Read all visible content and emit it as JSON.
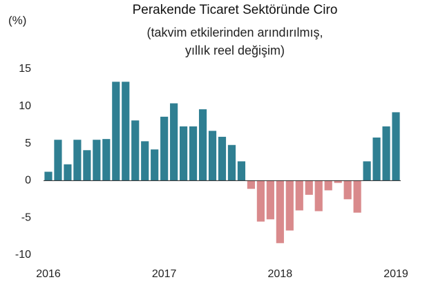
{
  "chart_data": {
    "type": "bar",
    "title": "Perakende Ticaret Sektöründe Ciro",
    "subtitle": "(takvim etkilerinden arındırılmış, yıllık reel değişim)",
    "y_label": "(%)",
    "categories": [
      "2016",
      null,
      null,
      null,
      null,
      null,
      null,
      null,
      null,
      null,
      null,
      null,
      "2017",
      null,
      null,
      null,
      null,
      null,
      null,
      null,
      null,
      null,
      null,
      null,
      "2018",
      null,
      null,
      null,
      null,
      null,
      null,
      null,
      null,
      null,
      null,
      null,
      "2019"
    ],
    "values": [
      1.2,
      5.5,
      2.2,
      5.5,
      4.1,
      5.5,
      5.6,
      13.3,
      13.3,
      8.1,
      5.3,
      4.2,
      8.6,
      10.4,
      7.3,
      7.3,
      9.6,
      6.7,
      5.9,
      4.8,
      2.6,
      -1.1,
      -5.5,
      -5.2,
      -8.4,
      -6.7,
      -4.0,
      -1.9,
      -4.1,
      -1.3,
      -0.3,
      -2.5,
      -4.3,
      2.6,
      5.8,
      7.3,
      9.2
    ],
    "positive_color": "#2f7f92",
    "negative_color": "#d98a8c",
    "ylim": [
      -10,
      15
    ],
    "yticks": [
      -10,
      -5,
      0,
      5,
      10,
      15
    ],
    "grid": false
  }
}
